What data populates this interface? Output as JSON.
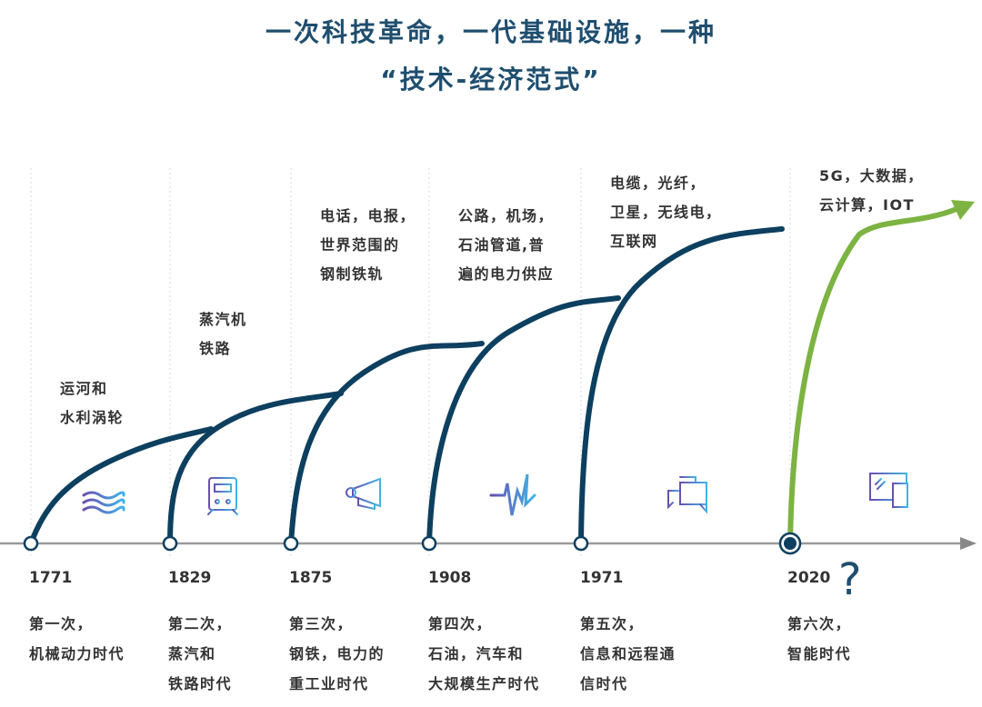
{
  "title": {
    "line1": "一次科技革命，一代基础设施，一种",
    "line2": "“技术-经济范式”"
  },
  "colors": {
    "curve": "#0d3f5f",
    "future_curve": "#7cb342",
    "axis": "#999999",
    "icon_gradient": [
      "#6a4fb0",
      "#3fb4e8"
    ]
  },
  "revolutions": [
    {
      "year": "1771",
      "era": [
        "第一次，",
        "机械动力时代"
      ],
      "infrastructure": [
        "运河和",
        "水利涡轮"
      ],
      "icon": "waves-icon"
    },
    {
      "year": "1829",
      "era": [
        "第二次，",
        "蒸汽和",
        "铁路时代"
      ],
      "infrastructure": [
        "蒸汽机",
        "铁路"
      ],
      "icon": "train-icon"
    },
    {
      "year": "1875",
      "era": [
        "第三次，",
        "钢铁，电力的",
        "重工业时代"
      ],
      "infrastructure": [
        "电话，电报，",
        "世界范围的",
        "钢制铁轨"
      ],
      "icon": "megaphone-icon"
    },
    {
      "year": "1908",
      "era": [
        "第四次，",
        "石油，汽车和",
        "大规模生产时代"
      ],
      "infrastructure": [
        "公路，机场，",
        "石油管道,普",
        "遍的电力供应"
      ],
      "icon": "pulse-icon"
    },
    {
      "year": "1971",
      "era": [
        "第五次，",
        "信息和远程通",
        "信时代"
      ],
      "infrastructure": [
        "电缆，光纤，",
        "卫星，无线电，",
        "互联网"
      ],
      "icon": "chat-icon"
    },
    {
      "year": "2020",
      "era": [
        "第六次，",
        "智能时代"
      ],
      "infrastructure": [
        "5G，大数据，",
        "云计算，IOT"
      ],
      "icon": "devices-icon",
      "mark": "?"
    }
  ]
}
